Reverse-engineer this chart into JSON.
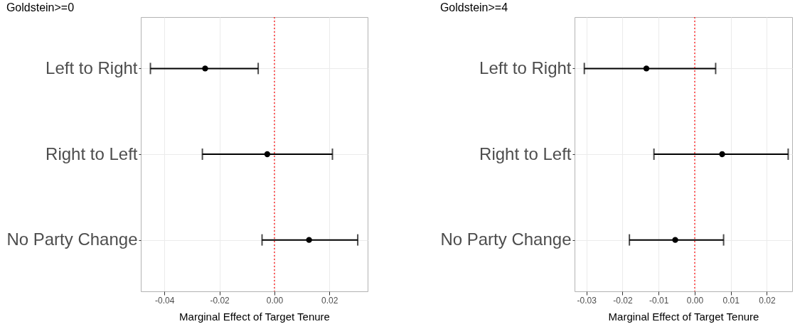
{
  "chart_data": [
    {
      "type": "scatter",
      "title": "Goldstein>=0",
      "xlabel": "Marginal Effect of Target Tenure",
      "categories": [
        "Left to Right",
        "Right to Left",
        "No Party Change"
      ],
      "series": [
        {
          "color": "#000000",
          "values": [
            -0.0252,
            -0.0026,
            0.0126
          ],
          "errors": [
            [
              -0.0451,
              -0.0059
            ],
            [
              -0.0262,
              0.0211
            ],
            [
              -0.0045,
              0.0303
            ]
          ]
        }
      ],
      "orientation": "horizontal",
      "xlim": [
        -0.0486,
        0.0339
      ],
      "xticks": [
        -0.04,
        -0.02,
        {
          "value": 0,
          "label": "0.00"
        },
        0.02
      ],
      "ref_lines": [
        {
          "axis": "x",
          "value": 0,
          "color": "#ff0000",
          "line_style": "dotted"
        }
      ],
      "grid": true,
      "legend": false,
      "marker": "circle"
    },
    {
      "type": "scatter",
      "title": "Goldstein>=4",
      "xlabel": "Marginal Effect of Target Tenure",
      "categories": [
        "Left to Right",
        "Right to Left",
        "No Party Change"
      ],
      "series": [
        {
          "color": "#000000",
          "values": [
            -0.0134,
            0.0076,
            -0.0054
          ],
          "errors": [
            [
              -0.0306,
              0.0058
            ],
            [
              -0.0113,
              0.0259
            ],
            [
              -0.0181,
              0.008
            ]
          ]
        }
      ],
      "orientation": "horizontal",
      "xlim": [
        -0.0333,
        0.027
      ],
      "xticks": [
        -0.03,
        -0.02,
        -0.01,
        {
          "value": 0,
          "label": "0.00"
        },
        0.01,
        0.02
      ],
      "ref_lines": [
        {
          "axis": "x",
          "value": 0,
          "color": "#ff0000",
          "line_style": "dotted"
        }
      ],
      "grid": true,
      "legend": false,
      "marker": "circle"
    }
  ]
}
